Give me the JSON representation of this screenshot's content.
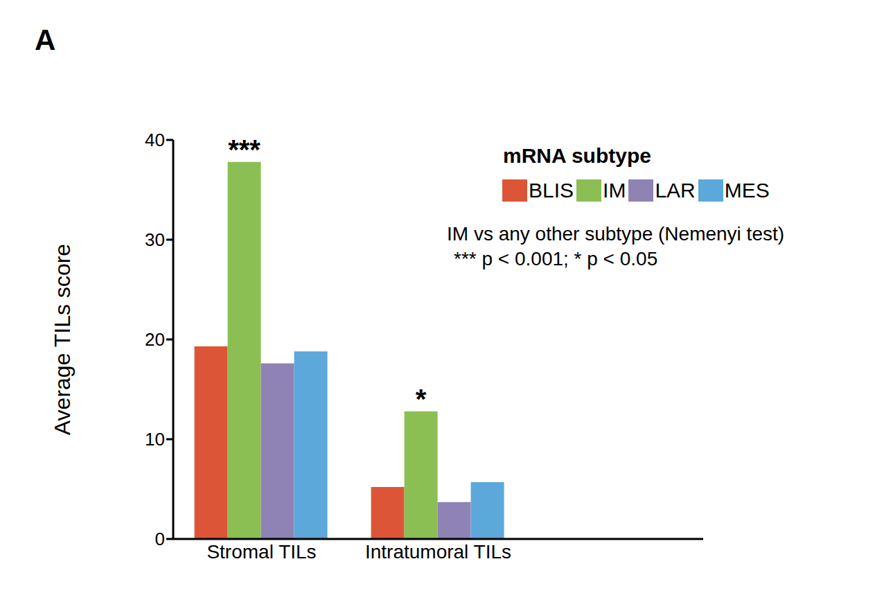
{
  "chart_data": {
    "type": "bar",
    "panel": "A",
    "categories": [
      "Stromal TILs",
      "Intratumoral TILs",
      null
    ],
    "series": [
      {
        "name": "BLIS",
        "color": "#dc5537",
        "values": [
          19.3,
          5.2,
          null
        ]
      },
      {
        "name": "IM",
        "color": "#8cbf53",
        "values": [
          37.8,
          12.8,
          null
        ]
      },
      {
        "name": "LAR",
        "color": "#8f83b5",
        "values": [
          17.6,
          3.7,
          null
        ]
      },
      {
        "name": "MES",
        "color": "#5ca8da",
        "values": [
          18.8,
          5.7,
          null
        ]
      }
    ],
    "y_label": "Average TILs  score",
    "ylim": [
      0,
      40
    ],
    "yticks": [
      0,
      10,
      20,
      30,
      40
    ],
    "grid": false,
    "legend": "upper right",
    "legend_title": "mRNA subtype",
    "annotations": [
      {
        "category": "Stromal TILs",
        "series": "IM",
        "text": "***"
      },
      {
        "category": "Intratumoral TILs",
        "series": "IM",
        "text": "*"
      }
    ],
    "notes": [
      "IM vs any other subtype (Nemenyi test)",
      "*** p < 0.001; * p < 0.05"
    ]
  }
}
